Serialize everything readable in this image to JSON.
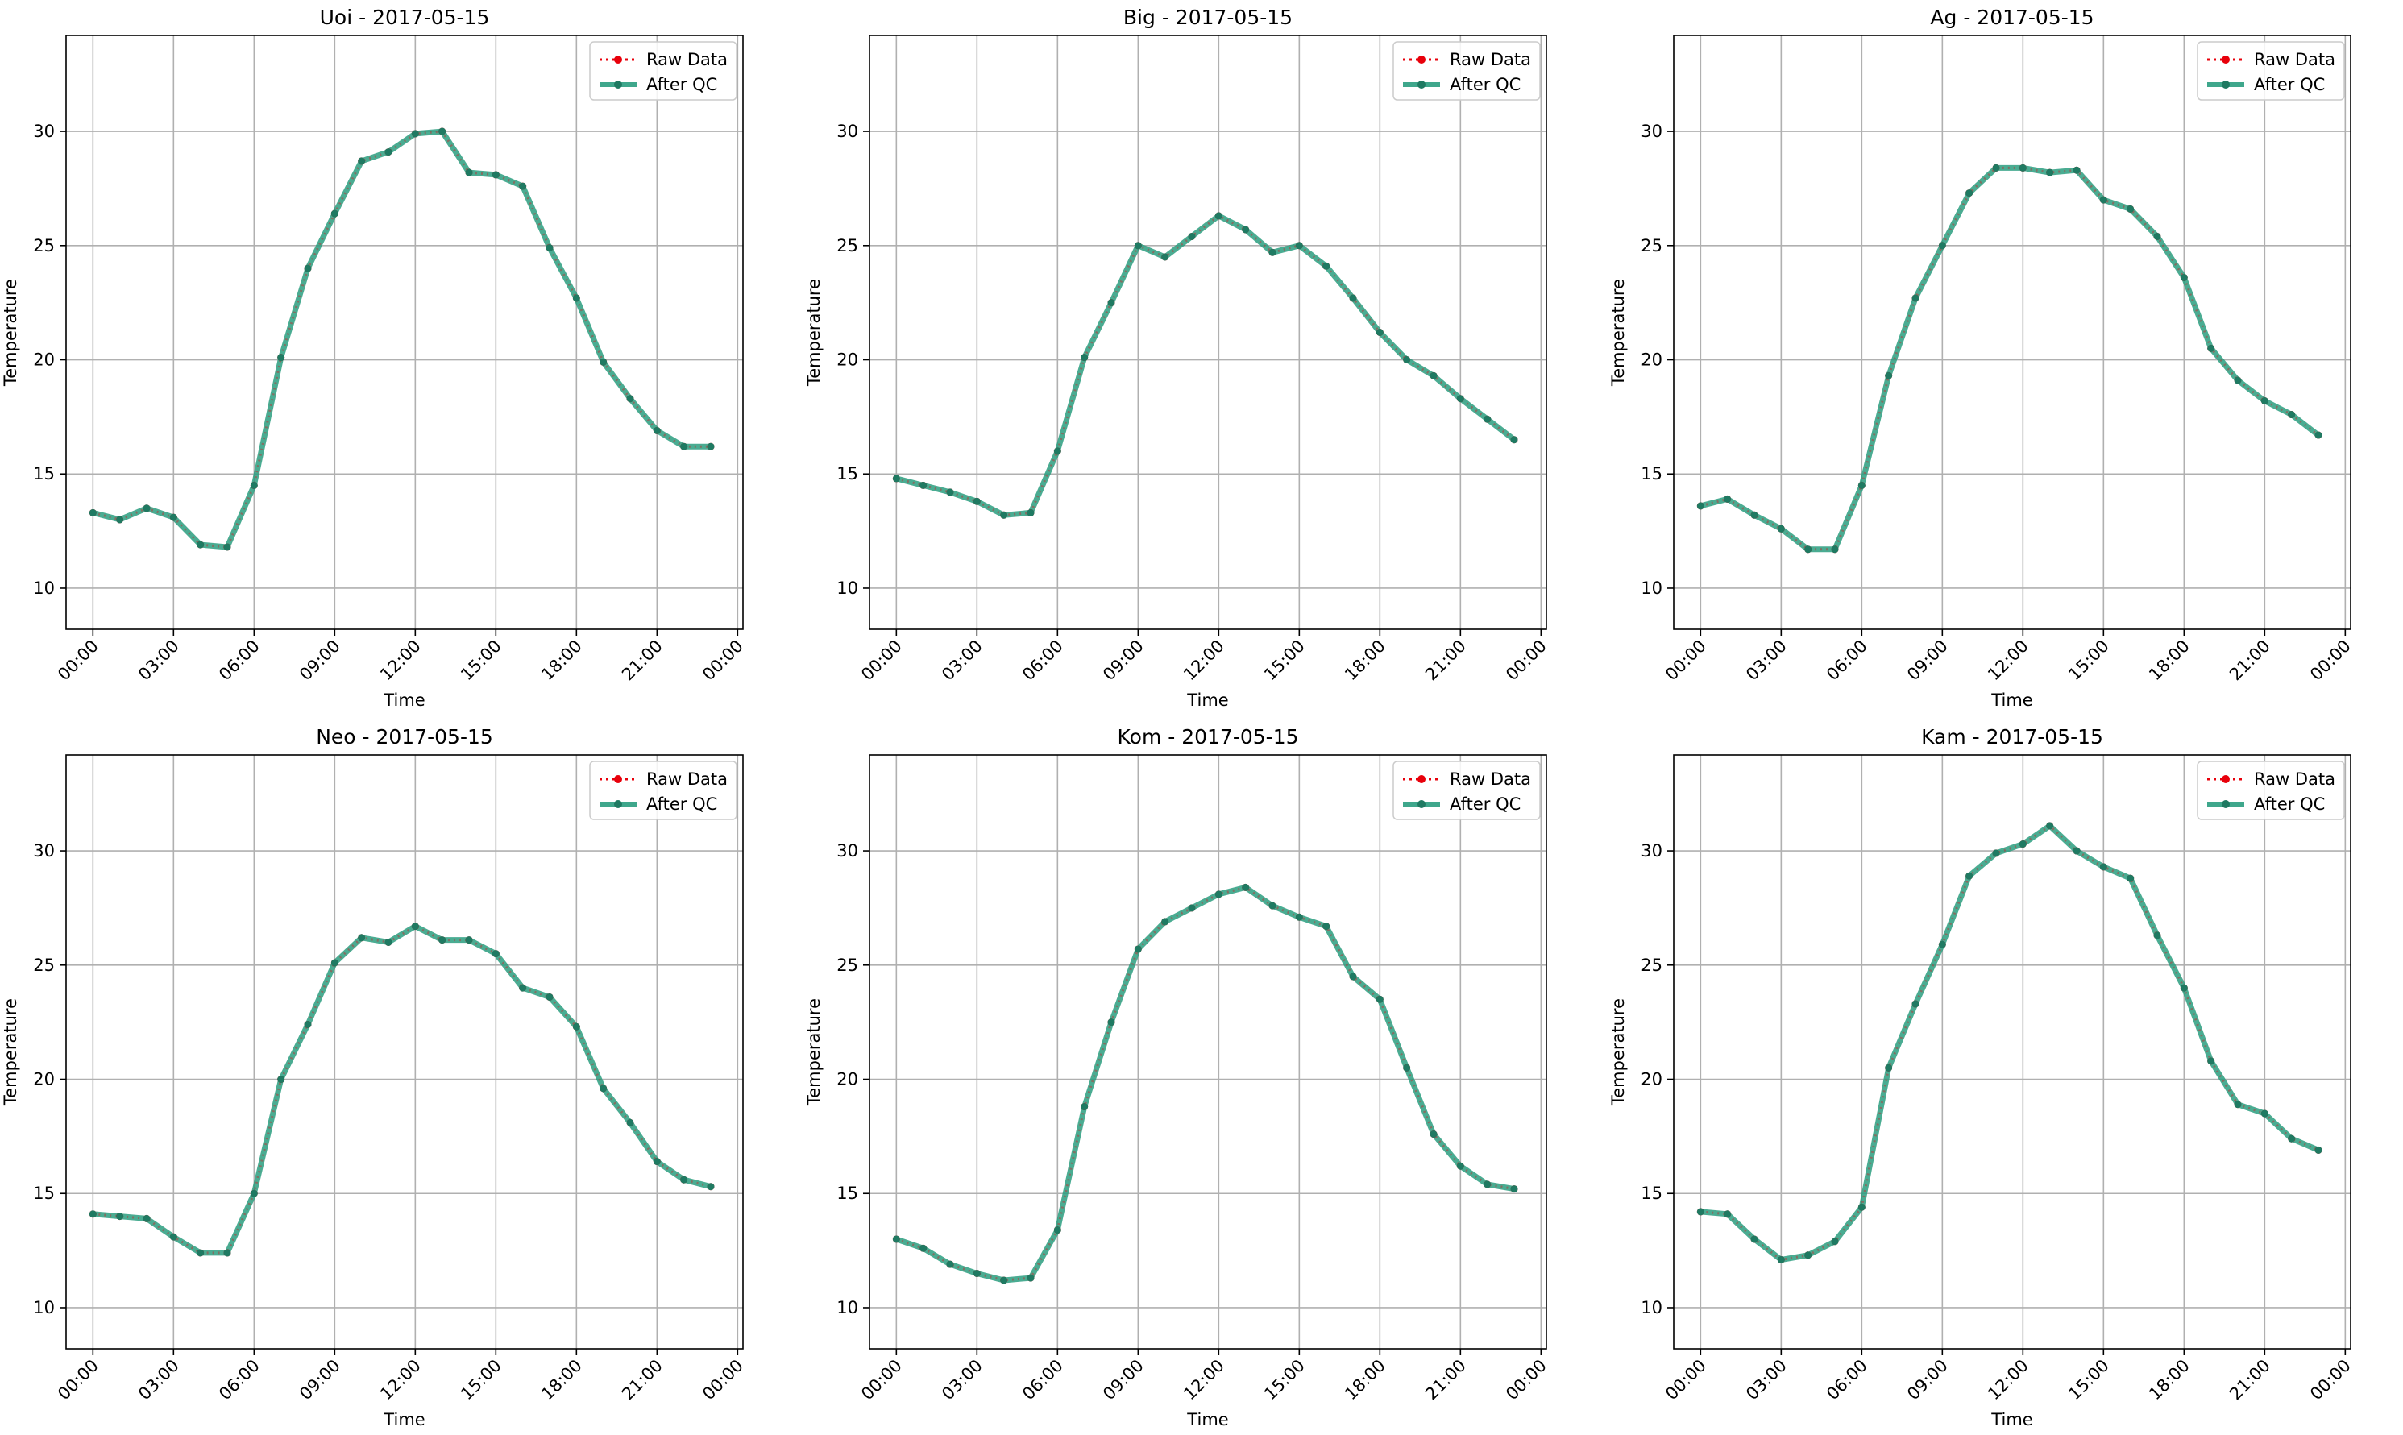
{
  "legend_placement": "top-right",
  "colors": {
    "raw": "#e8000b",
    "qc": "#2a9d7f",
    "qc_marker": "#1f7a62",
    "grid": "#b0b0b0",
    "axis": "#000000"
  },
  "chart_data": [
    {
      "type": "line",
      "title": "Uoi - 2017-05-15",
      "xlabel": "Time",
      "ylabel": "Temperature",
      "xlim": [
        -1.0,
        24.2
      ],
      "ylim": [
        8.2,
        34.2
      ],
      "grid": true,
      "x_hours": [
        0,
        1,
        2,
        3,
        4,
        5,
        6,
        7,
        8,
        9,
        10,
        11,
        12,
        13,
        14,
        15,
        16,
        17,
        18,
        19,
        20,
        21,
        22,
        23
      ],
      "x_tick_hours": [
        0,
        3,
        6,
        9,
        12,
        15,
        18,
        21,
        24
      ],
      "x_tick_labels": [
        "00:00",
        "03:00",
        "06:00",
        "09:00",
        "12:00",
        "15:00",
        "18:00",
        "21:00",
        "00:00"
      ],
      "y_ticks": [
        10,
        15,
        20,
        25,
        30
      ],
      "y_tick_labels": [
        "10",
        "15",
        "20",
        "25",
        "30"
      ],
      "series": [
        {
          "name": "Raw Data",
          "values": [
            13.3,
            13.0,
            13.5,
            13.1,
            11.9,
            11.8,
            14.5,
            20.1,
            24.0,
            26.4,
            28.7,
            29.1,
            29.9,
            30.0,
            28.2,
            28.1,
            27.6,
            24.9,
            22.7,
            19.9,
            18.3,
            16.9,
            16.2,
            16.2
          ]
        },
        {
          "name": "After QC",
          "values": [
            13.3,
            13.0,
            13.5,
            13.1,
            11.9,
            11.8,
            14.5,
            20.1,
            24.0,
            26.4,
            28.7,
            29.1,
            29.9,
            30.0,
            28.2,
            28.1,
            27.6,
            24.9,
            22.7,
            19.9,
            18.3,
            16.9,
            16.2,
            16.2
          ]
        }
      ]
    },
    {
      "type": "line",
      "title": "Big - 2017-05-15",
      "xlabel": "Time",
      "ylabel": "Temperature",
      "xlim": [
        -1.0,
        24.2
      ],
      "ylim": [
        8.2,
        34.2
      ],
      "grid": true,
      "x_hours": [
        0,
        1,
        2,
        3,
        4,
        5,
        6,
        7,
        8,
        9,
        10,
        11,
        12,
        13,
        14,
        15,
        16,
        17,
        18,
        19,
        20,
        21,
        22,
        23
      ],
      "x_tick_hours": [
        0,
        3,
        6,
        9,
        12,
        15,
        18,
        21,
        24
      ],
      "x_tick_labels": [
        "00:00",
        "03:00",
        "06:00",
        "09:00",
        "12:00",
        "15:00",
        "18:00",
        "21:00",
        "00:00"
      ],
      "y_ticks": [
        10,
        15,
        20,
        25,
        30
      ],
      "y_tick_labels": [
        "10",
        "15",
        "20",
        "25",
        "30"
      ],
      "series": [
        {
          "name": "Raw Data",
          "values": [
            14.8,
            14.5,
            14.2,
            13.8,
            13.2,
            13.3,
            16.0,
            20.1,
            22.5,
            25.0,
            24.5,
            25.4,
            26.3,
            25.7,
            24.7,
            25.0,
            24.1,
            22.7,
            21.2,
            20.0,
            19.3,
            18.3,
            17.4,
            16.5
          ]
        },
        {
          "name": "After QC",
          "values": [
            14.8,
            14.5,
            14.2,
            13.8,
            13.2,
            13.3,
            16.0,
            20.1,
            22.5,
            25.0,
            24.5,
            25.4,
            26.3,
            25.7,
            24.7,
            25.0,
            24.1,
            22.7,
            21.2,
            20.0,
            19.3,
            18.3,
            17.4,
            16.5
          ]
        }
      ]
    },
    {
      "type": "line",
      "title": "Ag - 2017-05-15",
      "xlabel": "Time",
      "ylabel": "Temperature",
      "xlim": [
        -1.0,
        24.2
      ],
      "ylim": [
        8.2,
        34.2
      ],
      "grid": true,
      "x_hours": [
        0,
        1,
        2,
        3,
        4,
        5,
        6,
        7,
        8,
        9,
        10,
        11,
        12,
        13,
        14,
        15,
        16,
        17,
        18,
        19,
        20,
        21,
        22,
        23
      ],
      "x_tick_hours": [
        0,
        3,
        6,
        9,
        12,
        15,
        18,
        21,
        24
      ],
      "x_tick_labels": [
        "00:00",
        "03:00",
        "06:00",
        "09:00",
        "12:00",
        "15:00",
        "18:00",
        "21:00",
        "00:00"
      ],
      "y_ticks": [
        10,
        15,
        20,
        25,
        30
      ],
      "y_tick_labels": [
        "10",
        "15",
        "20",
        "25",
        "30"
      ],
      "series": [
        {
          "name": "Raw Data",
          "values": [
            13.6,
            13.9,
            13.2,
            12.6,
            11.7,
            11.7,
            14.5,
            19.3,
            22.7,
            25.0,
            27.3,
            28.4,
            28.4,
            28.2,
            28.3,
            27.0,
            26.6,
            25.4,
            23.6,
            20.5,
            19.1,
            18.2,
            17.6,
            16.7
          ]
        },
        {
          "name": "After QC",
          "values": [
            13.6,
            13.9,
            13.2,
            12.6,
            11.7,
            11.7,
            14.5,
            19.3,
            22.7,
            25.0,
            27.3,
            28.4,
            28.4,
            28.2,
            28.3,
            27.0,
            26.6,
            25.4,
            23.6,
            20.5,
            19.1,
            18.2,
            17.6,
            16.7
          ]
        }
      ]
    },
    {
      "type": "line",
      "title": "Neo - 2017-05-15",
      "xlabel": "Time",
      "ylabel": "Temperature",
      "xlim": [
        -1.0,
        24.2
      ],
      "ylim": [
        8.2,
        34.2
      ],
      "grid": true,
      "x_hours": [
        0,
        1,
        2,
        3,
        4,
        5,
        6,
        7,
        8,
        9,
        10,
        11,
        12,
        13,
        14,
        15,
        16,
        17,
        18,
        19,
        20,
        21,
        22,
        23
      ],
      "x_tick_hours": [
        0,
        3,
        6,
        9,
        12,
        15,
        18,
        21,
        24
      ],
      "x_tick_labels": [
        "00:00",
        "03:00",
        "06:00",
        "09:00",
        "12:00",
        "15:00",
        "18:00",
        "21:00",
        "00:00"
      ],
      "y_ticks": [
        10,
        15,
        20,
        25,
        30
      ],
      "y_tick_labels": [
        "10",
        "15",
        "20",
        "25",
        "30"
      ],
      "series": [
        {
          "name": "Raw Data",
          "values": [
            14.1,
            14.0,
            13.9,
            13.1,
            12.4,
            12.4,
            15.0,
            20.0,
            22.4,
            25.1,
            26.2,
            26.0,
            26.7,
            26.1,
            26.1,
            25.5,
            24.0,
            23.6,
            22.3,
            19.6,
            18.1,
            16.4,
            15.6,
            15.3
          ]
        },
        {
          "name": "After QC",
          "values": [
            14.1,
            14.0,
            13.9,
            13.1,
            12.4,
            12.4,
            15.0,
            20.0,
            22.4,
            25.1,
            26.2,
            26.0,
            26.7,
            26.1,
            26.1,
            25.5,
            24.0,
            23.6,
            22.3,
            19.6,
            18.1,
            16.4,
            15.6,
            15.3
          ]
        }
      ]
    },
    {
      "type": "line",
      "title": "Kom - 2017-05-15",
      "xlabel": "Time",
      "ylabel": "Temperature",
      "xlim": [
        -1.0,
        24.2
      ],
      "ylim": [
        8.2,
        34.2
      ],
      "grid": true,
      "x_hours": [
        0,
        1,
        2,
        3,
        4,
        5,
        6,
        7,
        8,
        9,
        10,
        11,
        12,
        13,
        14,
        15,
        16,
        17,
        18,
        19,
        20,
        21,
        22,
        23
      ],
      "x_tick_hours": [
        0,
        3,
        6,
        9,
        12,
        15,
        18,
        21,
        24
      ],
      "x_tick_labels": [
        "00:00",
        "03:00",
        "06:00",
        "09:00",
        "12:00",
        "15:00",
        "18:00",
        "21:00",
        "00:00"
      ],
      "y_ticks": [
        10,
        15,
        20,
        25,
        30
      ],
      "y_tick_labels": [
        "10",
        "15",
        "20",
        "25",
        "30"
      ],
      "series": [
        {
          "name": "Raw Data",
          "values": [
            13.0,
            12.6,
            11.9,
            11.5,
            11.2,
            11.3,
            13.4,
            18.8,
            22.5,
            25.7,
            26.9,
            27.5,
            28.1,
            28.4,
            27.6,
            27.1,
            26.7,
            24.5,
            23.5,
            20.5,
            17.6,
            16.2,
            15.4,
            15.2
          ]
        },
        {
          "name": "After QC",
          "values": [
            13.0,
            12.6,
            11.9,
            11.5,
            11.2,
            11.3,
            13.4,
            18.8,
            22.5,
            25.7,
            26.9,
            27.5,
            28.1,
            28.4,
            27.6,
            27.1,
            26.7,
            24.5,
            23.5,
            20.5,
            17.6,
            16.2,
            15.4,
            15.2
          ]
        }
      ]
    },
    {
      "type": "line",
      "title": "Kam - 2017-05-15",
      "xlabel": "Time",
      "ylabel": "Temperature",
      "xlim": [
        -1.0,
        24.2
      ],
      "ylim": [
        8.2,
        34.2
      ],
      "grid": true,
      "x_hours": [
        0,
        1,
        2,
        3,
        4,
        5,
        6,
        7,
        8,
        9,
        10,
        11,
        12,
        13,
        14,
        15,
        16,
        17,
        18,
        19,
        20,
        21,
        22,
        23
      ],
      "x_tick_hours": [
        0,
        3,
        6,
        9,
        12,
        15,
        18,
        21,
        24
      ],
      "x_tick_labels": [
        "00:00",
        "03:00",
        "06:00",
        "09:00",
        "12:00",
        "15:00",
        "18:00",
        "21:00",
        "00:00"
      ],
      "y_ticks": [
        10,
        15,
        20,
        25,
        30
      ],
      "y_tick_labels": [
        "10",
        "15",
        "20",
        "25",
        "30"
      ],
      "series": [
        {
          "name": "Raw Data",
          "values": [
            14.2,
            14.1,
            13.0,
            12.1,
            12.3,
            12.9,
            14.4,
            20.5,
            23.3,
            25.9,
            28.9,
            29.9,
            30.3,
            31.1,
            30.0,
            29.3,
            28.8,
            26.3,
            24.0,
            20.8,
            18.9,
            18.5,
            17.4,
            16.9
          ]
        },
        {
          "name": "After QC",
          "values": [
            14.2,
            14.1,
            13.0,
            12.1,
            12.3,
            12.9,
            14.4,
            20.5,
            23.3,
            25.9,
            28.9,
            29.9,
            30.3,
            31.1,
            30.0,
            29.3,
            28.8,
            26.3,
            24.0,
            20.8,
            18.9,
            18.5,
            17.4,
            16.9
          ]
        }
      ]
    }
  ]
}
